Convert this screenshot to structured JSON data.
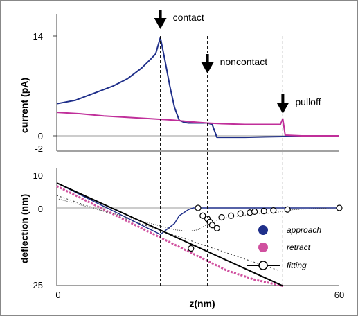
{
  "chart_data": [
    {
      "type": "line",
      "ylabel": "current (pA)",
      "y_tick_labels": [
        "14",
        "0",
        "-2"
      ],
      "ylim": [
        -2,
        14
      ],
      "xlim": [
        0,
        60
      ],
      "grid": false,
      "annotations": [
        {
          "label": "contact",
          "x": 22
        },
        {
          "label": "noncontact",
          "x": 32
        },
        {
          "label": "pulloff",
          "x": 48
        }
      ],
      "series": [
        {
          "name": "approach",
          "color": "#1f2f8a",
          "x": [
            0,
            4,
            8,
            12,
            15,
            18,
            20,
            21,
            22,
            23,
            24,
            25,
            26,
            27,
            28,
            30,
            32,
            33,
            34,
            40,
            48,
            55,
            60
          ],
          "y": [
            4.5,
            5.0,
            6.0,
            7.0,
            8.0,
            9.5,
            10.8,
            11.5,
            13.8,
            10.5,
            7.0,
            4.0,
            2.2,
            1.9,
            1.8,
            1.8,
            1.8,
            1.6,
            -0.2,
            -0.2,
            -0.1,
            -0.1,
            -0.1
          ]
        },
        {
          "name": "retract",
          "color": "#c02f9a",
          "x": [
            0,
            5,
            10,
            15,
            20,
            25,
            28,
            30,
            32,
            35,
            40,
            45,
            47.5,
            48,
            48.5,
            52,
            56,
            60
          ],
          "y": [
            3.3,
            3.1,
            2.8,
            2.6,
            2.4,
            2.2,
            2.0,
            1.9,
            1.8,
            1.7,
            1.6,
            1.6,
            1.6,
            2.4,
            0.1,
            0.0,
            0.0,
            0.0
          ]
        }
      ]
    },
    {
      "type": "line",
      "xlabel": "z(nm)",
      "ylabel": "deflection (nm)",
      "x_tick_labels": [
        "0",
        "60"
      ],
      "y_tick_labels": [
        "10",
        "0",
        "-25"
      ],
      "xlim": [
        0,
        60
      ],
      "ylim": [
        -25,
        10
      ],
      "grid": false,
      "legend_position": "bottom-right",
      "series": [
        {
          "name": "approach",
          "color": "#1f2f8a",
          "x": [
            0,
            6,
            12,
            18,
            22,
            25,
            26,
            27,
            28,
            29,
            30,
            32,
            60
          ],
          "y": [
            8,
            3.5,
            -1,
            -5.5,
            -8.5,
            -5,
            -2.5,
            -1.5,
            -0.5,
            0,
            0,
            0,
            0
          ]
        },
        {
          "name": "retract",
          "color": "#d0509f",
          "x": [
            0,
            6,
            12,
            18,
            24,
            30,
            36,
            42,
            48
          ],
          "y": [
            7,
            2.5,
            -2,
            -6.5,
            -11,
            -15.5,
            -20,
            -23,
            -25
          ]
        },
        {
          "name": "fitting",
          "color": "#000000",
          "x": [
            0,
            5,
            10,
            15,
            20,
            25,
            28,
            30,
            31,
            33,
            35,
            37,
            40,
            42,
            44,
            46,
            50,
            55,
            60
          ],
          "y": [
            3,
            1,
            -1,
            -3,
            -5,
            -7,
            -7.5,
            -7,
            -6,
            -4.6,
            -3.5,
            -2.9,
            -2.3,
            -1.9,
            -1.8,
            -1.6,
            -0.6,
            -0.2,
            0
          ]
        }
      ],
      "fitting_line": {
        "x": [
          0,
          48
        ],
        "y": [
          8,
          -25
        ]
      },
      "dotted_line": {
        "x": [
          0,
          47
        ],
        "y": [
          4,
          -20
        ]
      },
      "fit_points_x": [
        30,
        31,
        32,
        32.5,
        33,
        34,
        35,
        37,
        39,
        41,
        42,
        44,
        46,
        49,
        60
      ],
      "fit_points_y": [
        0,
        -2.5,
        -3.5,
        -4.5,
        -5.5,
        -6.5,
        -3,
        -2.5,
        -1.8,
        -1.5,
        -1.2,
        -1.0,
        -0.8,
        -0.5,
        0
      ],
      "fit_point_extra": {
        "x": 28.5,
        "y": -13
      }
    }
  ]
}
